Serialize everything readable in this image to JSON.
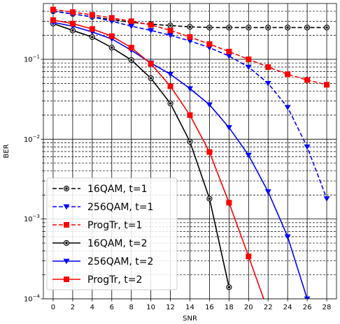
{
  "chart_data": {
    "type": "line",
    "title": "",
    "xlabel": "SNR",
    "ylabel": "BER",
    "xlim": [
      -1,
      29
    ],
    "ylim": [
      0.0001,
      0.5
    ],
    "yscale": "log",
    "xticks": [
      0,
      2,
      4,
      6,
      8,
      10,
      12,
      14,
      16,
      18,
      20,
      22,
      24,
      26,
      28
    ],
    "yticks": [
      {
        "value": 0.0001,
        "base": "10",
        "exp": "−4"
      },
      {
        "value": 0.001,
        "base": "10",
        "exp": "−3"
      },
      {
        "value": 0.01,
        "base": "10",
        "exp": "−2"
      },
      {
        "value": 0.1,
        "base": "10",
        "exp": "−1"
      }
    ],
    "grid": true,
    "legend_position": "lower-left",
    "series": [
      {
        "name": "16QAM, t=1",
        "color": "#000000",
        "dashed": true,
        "marker": "circle",
        "x": [
          0,
          2,
          4,
          6,
          8,
          10,
          12,
          14,
          16,
          18,
          20,
          22,
          24,
          26,
          28
        ],
        "y": [
          0.4,
          0.37,
          0.34,
          0.315,
          0.29,
          0.275,
          0.265,
          0.255,
          0.25,
          0.25,
          0.25,
          0.25,
          0.25,
          0.25,
          0.25
        ]
      },
      {
        "name": "256QAM, t=1",
        "color": "#0000ff",
        "dashed": true,
        "marker": "triangle-down",
        "x": [
          0,
          2,
          4,
          6,
          8,
          10,
          12,
          14,
          16,
          18,
          20,
          22,
          24,
          26,
          28
        ],
        "y": [
          0.4,
          0.37,
          0.34,
          0.3,
          0.26,
          0.23,
          0.2,
          0.17,
          0.14,
          0.11,
          0.08,
          0.05,
          0.025,
          0.008,
          0.0018
        ]
      },
      {
        "name": "ProgTr, t=1",
        "color": "#ff0000",
        "dashed": true,
        "marker": "square",
        "x": [
          0,
          2,
          4,
          6,
          8,
          10,
          12,
          14,
          16,
          18,
          20,
          22,
          24,
          26,
          28
        ],
        "y": [
          0.42,
          0.39,
          0.36,
          0.33,
          0.3,
          0.27,
          0.23,
          0.19,
          0.155,
          0.125,
          0.1,
          0.08,
          0.065,
          0.055,
          0.048
        ]
      },
      {
        "name": "16QAM, t=2",
        "color": "#000000",
        "dashed": false,
        "marker": "circle",
        "x": [
          0,
          2,
          4,
          6,
          8,
          10,
          12,
          14,
          16,
          18
        ],
        "y": [
          0.28,
          0.23,
          0.19,
          0.14,
          0.098,
          0.058,
          0.028,
          0.0093,
          0.0018,
          0.00014
        ]
      },
      {
        "name": "256QAM, t=2",
        "color": "#0000ff",
        "dashed": false,
        "marker": "triangle-down",
        "x": [
          0,
          2,
          4,
          6,
          8,
          10,
          12,
          14,
          16,
          18,
          20,
          22,
          24,
          26
        ],
        "y": [
          0.29,
          0.26,
          0.22,
          0.18,
          0.13,
          0.09,
          0.065,
          0.043,
          0.027,
          0.014,
          0.0063,
          0.0022,
          0.0006,
          0.0001
        ]
      },
      {
        "name": "ProgTr, t=2",
        "color": "#ff0000",
        "dashed": false,
        "marker": "square",
        "x": [
          0,
          2,
          4,
          6,
          8,
          10,
          12,
          14,
          16,
          18,
          20,
          22
        ],
        "y": [
          0.31,
          0.28,
          0.24,
          0.195,
          0.14,
          0.088,
          0.046,
          0.02,
          0.0069,
          0.0016,
          0.00034,
          7e-05
        ]
      }
    ]
  }
}
